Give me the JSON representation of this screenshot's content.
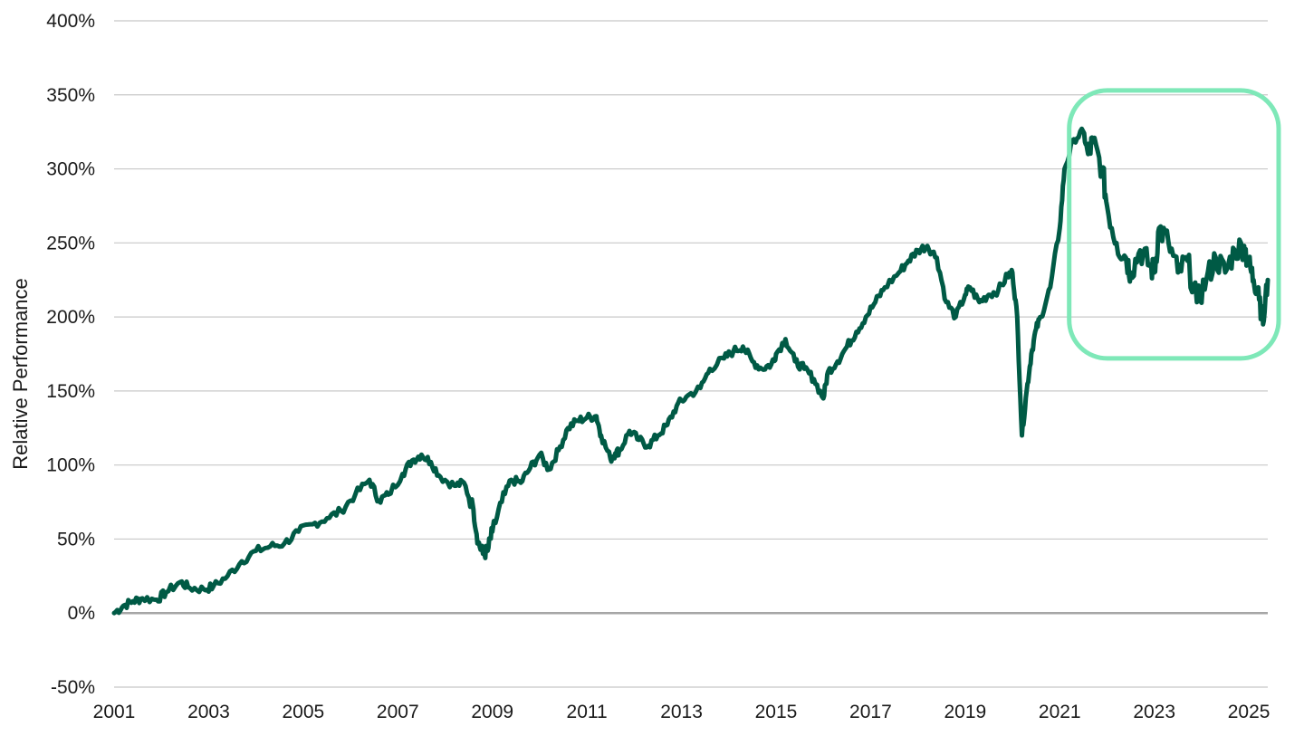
{
  "chart_data": {
    "type": "line",
    "title": "",
    "xlabel": "",
    "ylabel": "Relative Performance",
    "xlim": [
      2001.0,
      2025.4
    ],
    "ylim": [
      -50,
      400
    ],
    "y_ticks": [
      -50,
      0,
      50,
      100,
      150,
      200,
      250,
      300,
      350,
      400
    ],
    "y_tick_labels": [
      "-50%",
      "0%",
      "50%",
      "100%",
      "150%",
      "200%",
      "250%",
      "300%",
      "350%",
      "400%"
    ],
    "x_ticks": [
      2001,
      2003,
      2005,
      2007,
      2009,
      2011,
      2013,
      2015,
      2017,
      2019,
      2021,
      2023,
      2025
    ],
    "x_tick_labels": [
      "2001",
      "2003",
      "2005",
      "2007",
      "2009",
      "2011",
      "2013",
      "2015",
      "2017",
      "2019",
      "2021",
      "2023",
      "2025"
    ],
    "grid": true,
    "legend": "none",
    "colors": {
      "line": "#005a45",
      "grid": "#c8c8c8",
      "zero_line": "#a6a6a6",
      "highlight": "#7ee8b8"
    },
    "highlight_box": {
      "x_range": [
        2021.2,
        2025.4
      ],
      "y_range": [
        172,
        353
      ]
    },
    "series": [
      {
        "x": [
          2001.0,
          2001.2,
          2001.4,
          2001.6,
          2001.9,
          2002.1,
          2002.4,
          2002.6,
          2002.9,
          2003.1,
          2003.4,
          2003.7,
          2004.0,
          2004.3,
          2004.6,
          2004.9,
          2005.2,
          2005.5,
          2005.8,
          2006.1,
          2006.4,
          2006.6,
          2006.8,
          2007.1,
          2007.3,
          2007.5,
          2007.7,
          2007.9,
          2008.2,
          2008.4,
          2008.6,
          2008.7,
          2008.8,
          2008.9,
          2009.0,
          2009.2,
          2009.4,
          2009.6,
          2009.8,
          2010.0,
          2010.2,
          2010.4,
          2010.6,
          2010.8,
          2011.0,
          2011.2,
          2011.3,
          2011.5,
          2011.6,
          2011.7,
          2011.9,
          2012.1,
          2012.3,
          2012.5,
          2012.7,
          2012.9,
          2013.1,
          2013.4,
          2013.6,
          2013.9,
          2014.1,
          2014.3,
          2014.5,
          2014.7,
          2014.9,
          2015.0,
          2015.2,
          2015.4,
          2015.6,
          2015.8,
          2016.0,
          2016.1,
          2016.3,
          2016.5,
          2016.7,
          2016.9,
          2017.1,
          2017.3,
          2017.6,
          2017.8,
          2018.0,
          2018.2,
          2018.4,
          2018.6,
          2018.8,
          2019.0,
          2019.1,
          2019.3,
          2019.5,
          2019.7,
          2019.9,
          2020.0,
          2020.1,
          2020.2,
          2020.3,
          2020.4,
          2020.5,
          2020.6,
          2020.8,
          2021.0,
          2021.1,
          2021.3,
          2021.5,
          2021.6,
          2021.7,
          2021.9,
          2022.0,
          2022.2,
          2022.4,
          2022.5,
          2022.7,
          2022.9,
          2023.0,
          2023.1,
          2023.3,
          2023.5,
          2023.7,
          2023.9,
          2024.1,
          2024.3,
          2024.5,
          2024.7,
          2024.9,
          2025.0,
          2025.1,
          2025.2,
          2025.3,
          2025.4
        ],
        "values": [
          0,
          5,
          8,
          10,
          9,
          14,
          21,
          17,
          16,
          18,
          25,
          35,
          42,
          45,
          47,
          55,
          60,
          64,
          69,
          80,
          90,
          76,
          80,
          94,
          103,
          107,
          102,
          92,
          86,
          88,
          70,
          48,
          40,
          42,
          55,
          75,
          90,
          88,
          98,
          107,
          97,
          110,
          125,
          130,
          132,
          133,
          120,
          104,
          108,
          110,
          123,
          117,
          113,
          120,
          127,
          140,
          146,
          152,
          165,
          172,
          177,
          180,
          170,
          165,
          168,
          175,
          185,
          170,
          165,
          158,
          145,
          163,
          170,
          180,
          190,
          200,
          210,
          220,
          230,
          238,
          245,
          248,
          240,
          210,
          200,
          215,
          220,
          210,
          215,
          218,
          228,
          230,
          200,
          120,
          150,
          175,
          192,
          200,
          220,
          260,
          300,
          320,
          325,
          310,
          318,
          300,
          275,
          250,
          240,
          230,
          245,
          235,
          230,
          260,
          250,
          230,
          238,
          210,
          225,
          240,
          230,
          245,
          248,
          235,
          225,
          220,
          195,
          225
        ]
      }
    ]
  }
}
